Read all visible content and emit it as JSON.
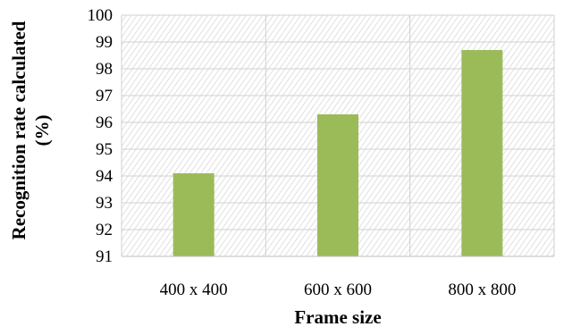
{
  "chart_data": {
    "type": "bar",
    "title": "",
    "xlabel": "Frame size",
    "ylabel": "Recognition rate calculated (%)",
    "ylabel_lines": [
      "Recognition rate calculated",
      "(%)"
    ],
    "categories": [
      "400 x 400",
      "600 x 600",
      "800 x 800"
    ],
    "values": [
      94.1,
      96.3,
      98.7
    ],
    "ylim": [
      91,
      100
    ],
    "yticks": [
      91,
      92,
      93,
      94,
      95,
      96,
      97,
      98,
      99,
      100
    ],
    "grid": true,
    "legend": "none",
    "bar_color": "#9bbb59",
    "plot_background": "hatched"
  }
}
